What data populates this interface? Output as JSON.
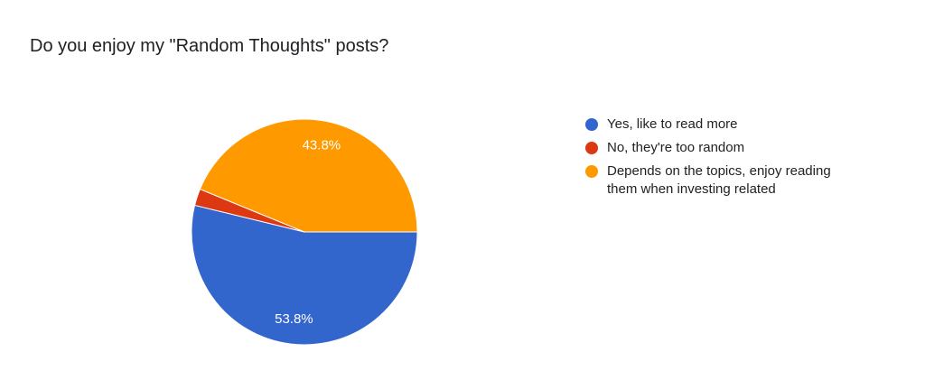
{
  "chart_data": {
    "type": "pie",
    "title": "Do you enjoy my \"Random Thoughts\" posts?",
    "categories": [
      "Yes, like to read more",
      "No, they're too random",
      "Depends on the topics, enjoy reading them when investing related"
    ],
    "values": [
      53.8,
      2.4,
      43.8
    ],
    "value_labels": [
      "53.8%",
      null,
      "43.8%"
    ],
    "colors": [
      "#3366cc",
      "#dc3912",
      "#ff9900"
    ],
    "legend": "right"
  }
}
